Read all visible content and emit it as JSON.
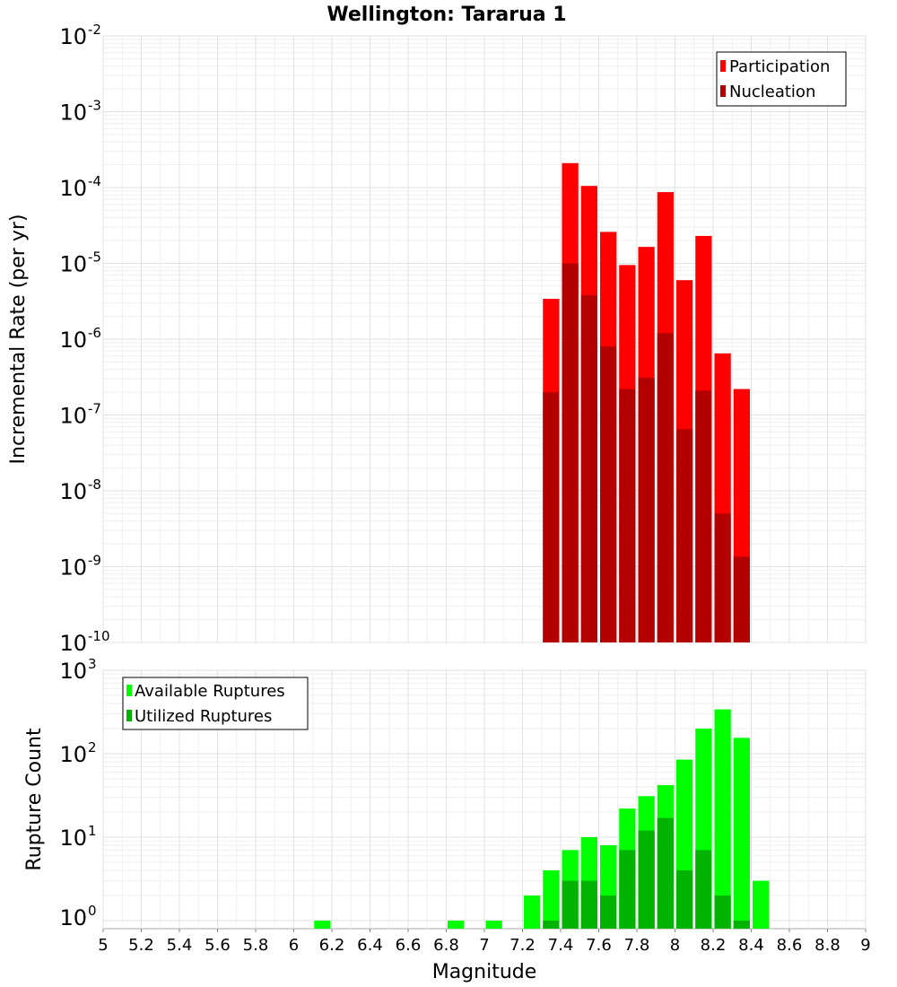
{
  "chart_data": [
    {
      "type": "bar",
      "title": "Wellington: Tararua 1",
      "xlabel": "",
      "ylabel": "Incremental Rate (per yr)",
      "yscale": "log",
      "xlim": [
        5,
        9
      ],
      "ylim_exponents": [
        -10,
        -2
      ],
      "y_tick_labels": [
        {
          "base": "10",
          "exp": "-2"
        },
        {
          "base": "10",
          "exp": "-3"
        },
        {
          "base": "10",
          "exp": "-4"
        },
        {
          "base": "10",
          "exp": "-5"
        },
        {
          "base": "10",
          "exp": "-6"
        },
        {
          "base": "10",
          "exp": "-7"
        },
        {
          "base": "10",
          "exp": "-8"
        },
        {
          "base": "10",
          "exp": "-9"
        },
        {
          "base": "10",
          "exp": "-10"
        }
      ],
      "grid": true,
      "legend_position": "top-right",
      "bin_width": 0.1,
      "series": [
        {
          "name": "Participation",
          "color": "#ff0000",
          "x": [
            7.35,
            7.45,
            7.55,
            7.65,
            7.75,
            7.85,
            7.95,
            8.05,
            8.15,
            8.25,
            8.35
          ],
          "values": [
            3.4e-06,
            0.00021,
            0.000105,
            2.6e-05,
            9.5e-06,
            1.65e-05,
            8.7e-05,
            6e-06,
            2.3e-05,
            6.5e-07,
            2.2e-07
          ]
        },
        {
          "name": "Nucleation",
          "color": "#b30000",
          "x": [
            7.35,
            7.45,
            7.55,
            7.65,
            7.75,
            7.85,
            7.95,
            8.05,
            8.15,
            8.25,
            8.35
          ],
          "values": [
            2e-07,
            1e-05,
            3.8e-06,
            8e-07,
            2.2e-07,
            3.1e-07,
            1.2e-06,
            6.5e-08,
            2.1e-07,
            5e-09,
            1.35e-09
          ]
        }
      ]
    },
    {
      "type": "bar",
      "title": "",
      "xlabel": "Magnitude",
      "ylabel": "Rupture Count",
      "yscale": "log",
      "xlim": [
        5,
        9
      ],
      "ylim": [
        0.8,
        1000
      ],
      "x_tick_labels": [
        "5",
        "5.2",
        "5.4",
        "5.6",
        "5.8",
        "6",
        "6.2",
        "6.4",
        "6.6",
        "6.8",
        "7",
        "7.2",
        "7.4",
        "7.6",
        "7.8",
        "8",
        "8.2",
        "8.4",
        "8.6",
        "8.8",
        "9"
      ],
      "y_tick_labels": [
        {
          "base": "10",
          "exp": "3"
        },
        {
          "base": "10",
          "exp": "2"
        },
        {
          "base": "10",
          "exp": "1"
        },
        {
          "base": "10",
          "exp": "0"
        }
      ],
      "grid": true,
      "legend_position": "top-left",
      "bin_width": 0.1,
      "series": [
        {
          "name": "Available Ruptures",
          "color": "#00ff00",
          "x": [
            6.15,
            6.85,
            7.05,
            7.25,
            7.35,
            7.45,
            7.55,
            7.65,
            7.75,
            7.85,
            7.95,
            8.05,
            8.15,
            8.25,
            8.35,
            8.45
          ],
          "values": [
            1,
            1,
            1,
            2,
            4,
            7,
            10,
            8,
            22,
            31,
            42,
            85,
            200,
            340,
            155,
            3
          ]
        },
        {
          "name": "Utilized Ruptures",
          "color": "#00b300",
          "x": [
            7.35,
            7.45,
            7.55,
            7.65,
            7.75,
            7.85,
            7.95,
            8.05,
            8.15,
            8.25,
            8.35
          ],
          "values": [
            1,
            3,
            3,
            2,
            7,
            12,
            17,
            4,
            7,
            2,
            1
          ]
        }
      ]
    }
  ]
}
